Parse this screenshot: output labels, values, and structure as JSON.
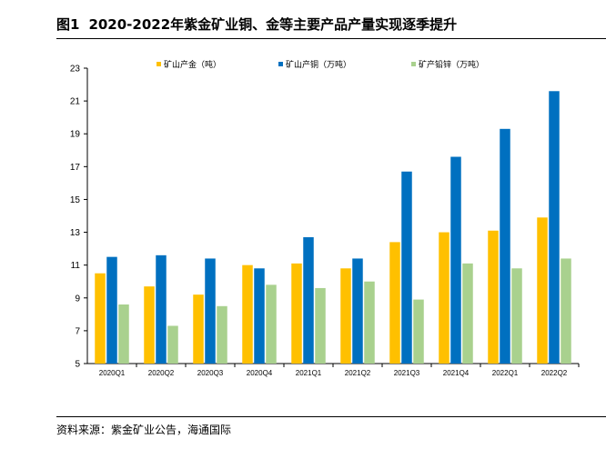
{
  "figure": {
    "label": "图1",
    "title": "2020-2022年紫金矿业铜、金等主要产品产量实现逐季提升",
    "source": "资料来源：紫金矿业公告，海通国际"
  },
  "chart_data": {
    "type": "bar",
    "categories": [
      "2020Q1",
      "2020Q2",
      "2020Q3",
      "2020Q4",
      "2021Q1",
      "2021Q2",
      "2021Q3",
      "2021Q4",
      "2022Q1",
      "2022Q2"
    ],
    "series": [
      {
        "name": "矿山产金（吨）",
        "color": "#FFC000",
        "values": [
          10.5,
          9.7,
          9.2,
          11.0,
          11.1,
          10.8,
          12.4,
          13.0,
          13.1,
          13.9
        ]
      },
      {
        "name": "矿山产铜（万吨）",
        "color": "#0070C0",
        "values": [
          11.5,
          11.6,
          11.4,
          10.8,
          12.7,
          11.4,
          16.7,
          17.6,
          19.3,
          21.6
        ]
      },
      {
        "name": "矿产铅锌（万吨）",
        "color": "#A9D18E",
        "values": [
          8.6,
          7.3,
          8.5,
          9.8,
          9.6,
          10.0,
          8.9,
          11.1,
          10.8,
          11.4
        ]
      }
    ],
    "ylim": [
      5,
      23
    ],
    "yticks": [
      "5",
      "7",
      "9",
      "11",
      "13",
      "15",
      "17",
      "19",
      "21",
      "23"
    ],
    "legend_position": "top",
    "grid": false
  }
}
